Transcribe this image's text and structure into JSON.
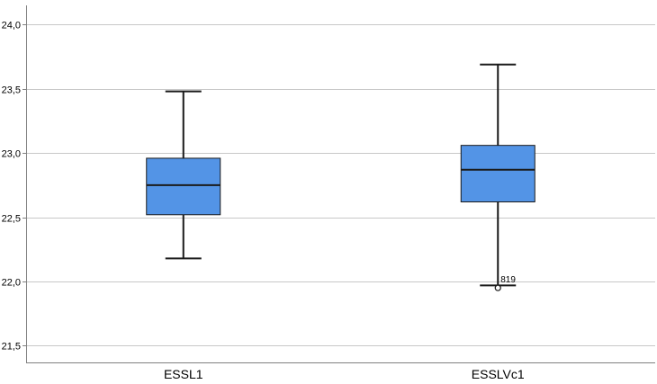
{
  "chart_data": {
    "type": "boxplot",
    "title": "",
    "xlabel": "",
    "ylabel": "",
    "ylim": [
      21.37,
      24.15
    ],
    "yticks": [
      21.5,
      22.0,
      22.5,
      23.0,
      23.5,
      24.0
    ],
    "ytick_labels": [
      "21,5",
      "22,0",
      "22,5",
      "23,0",
      "23,5",
      "24,0"
    ],
    "grid": "horizontal",
    "categories": [
      "ESSL1",
      "ESSLVc1"
    ],
    "boxes": [
      {
        "label": "ESSL1",
        "min": 22.18,
        "q1": 22.52,
        "median": 22.75,
        "q3": 22.96,
        "max": 23.48,
        "outliers": []
      },
      {
        "label": "ESSLVc1",
        "min": 21.97,
        "q1": 22.62,
        "median": 22.87,
        "q3": 23.06,
        "max": 23.69,
        "outliers": [
          {
            "value": 21.95,
            "label": "819"
          }
        ]
      }
    ],
    "colors": {
      "box_fill": "#5394e6",
      "box_stroke": "#1a1a1a",
      "grid": "#c8c8c8",
      "axis": "#808080"
    }
  }
}
